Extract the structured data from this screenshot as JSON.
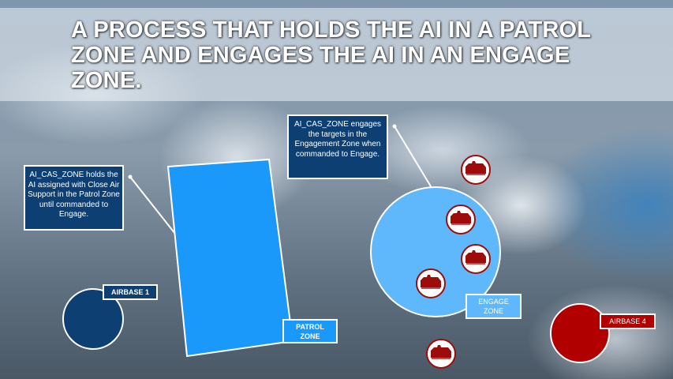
{
  "title": "A PROCESS THAT HOLDS THE AI IN A PATROL ZONE AND ENGAGES THE AI IN AN ENGAGE ZONE.",
  "callouts": {
    "patrol": "AI_CAS_ZONE holds the AI assigned with Close Air Support in the Patrol Zone until commanded to Engage.",
    "engage": "AI_CAS_ZONE engages the targets in the Engagement Zone when commanded to Engage."
  },
  "labels": {
    "airbase1": "AIRBASE 1",
    "patrol_zone": [
      "PATROL",
      "ZONE"
    ],
    "engage_zone": [
      "ENGAGE",
      "ZONE"
    ],
    "airbase4": "AIRBASE 4"
  },
  "icons": {
    "target": "tank-icon"
  },
  "colors": {
    "patrol_zone": "#1a99fa",
    "engage_zone": "#5fb8fb",
    "blue_airbase": "#0d3f73",
    "red_airbase": "#b00000",
    "target": "#9e0b0b"
  }
}
